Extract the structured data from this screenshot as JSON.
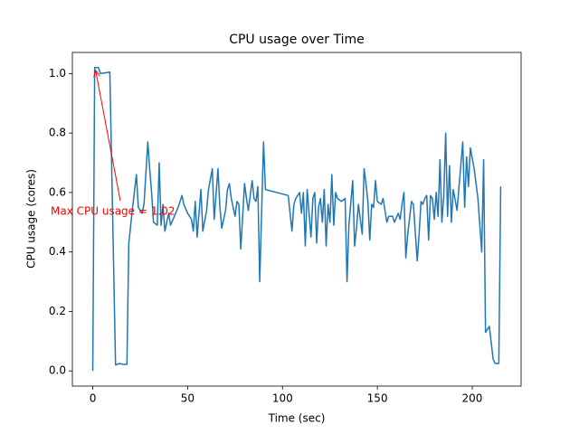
{
  "chart_data": {
    "type": "line",
    "title": "CPU usage over Time",
    "xlabel": "Time (sec)",
    "ylabel": "CPU usage (cores)",
    "annotation": "Max CPU usage = 1.02",
    "annotation_color": "#ff0000",
    "xlim": [
      -10.75,
      225.75
    ],
    "ylim": [
      -0.051,
      1.071
    ],
    "xticks": [
      0,
      50,
      100,
      150,
      200
    ],
    "yticks": [
      {
        "value": 0,
        "label": "0.0"
      },
      {
        "value": 0.2,
        "label": "0.2"
      },
      {
        "value": 0.4,
        "label": "0.4"
      },
      {
        "value": 0.6,
        "label": "0.6"
      },
      {
        "value": 0.8,
        "label": "0.8"
      },
      {
        "value": 1,
        "label": "1.0"
      }
    ],
    "series": [
      {
        "color": "#1f77b4",
        "x": [
          0,
          1,
          3,
          4,
          9,
          11,
          12,
          14,
          16,
          18,
          19,
          21,
          23,
          24,
          26,
          27,
          29,
          30,
          31,
          32,
          34,
          35,
          36,
          37,
          38,
          40,
          41,
          43,
          45,
          47,
          48,
          50,
          52,
          53,
          54,
          55,
          57,
          58,
          60,
          61,
          63,
          64,
          66,
          67,
          68,
          70,
          71,
          72,
          73,
          75,
          76,
          77,
          78,
          80,
          81,
          82,
          84,
          85,
          86,
          87,
          88,
          90,
          91,
          103,
          105,
          106,
          107,
          109,
          110,
          111,
          112,
          113,
          115,
          116,
          117,
          118,
          119,
          120,
          121,
          122,
          123,
          124,
          125,
          126,
          127,
          128,
          129,
          131,
          133,
          134,
          135,
          137,
          138,
          139,
          140,
          142,
          143,
          144,
          145,
          146,
          147,
          148,
          149,
          150,
          152,
          153,
          155,
          156,
          158,
          159,
          161,
          162,
          163,
          164,
          165,
          166,
          168,
          169,
          171,
          172,
          173,
          174,
          175,
          176,
          177,
          178,
          179,
          180,
          181,
          182,
          183,
          184,
          185,
          186,
          187,
          188,
          189,
          190,
          192,
          195,
          196,
          197,
          198,
          199,
          201,
          203,
          205,
          206,
          207,
          209,
          211,
          212,
          214,
          215
        ],
        "values": [
          0.0,
          1.02,
          1.02,
          1.0,
          1.005,
          0.35,
          0.02,
          0.025,
          0.022,
          0.022,
          0.43,
          0.55,
          0.66,
          0.55,
          0.53,
          0.56,
          0.77,
          0.68,
          0.6,
          0.5,
          0.49,
          0.7,
          0.49,
          0.56,
          0.47,
          0.53,
          0.49,
          0.52,
          0.55,
          0.59,
          0.56,
          0.53,
          0.51,
          0.47,
          0.57,
          0.45,
          0.61,
          0.47,
          0.54,
          0.61,
          0.68,
          0.51,
          0.68,
          0.55,
          0.48,
          0.54,
          0.61,
          0.63,
          0.58,
          0.52,
          0.57,
          0.56,
          0.41,
          0.63,
          0.58,
          0.54,
          0.64,
          0.58,
          0.57,
          0.62,
          0.3,
          0.77,
          0.61,
          0.59,
          0.47,
          0.56,
          0.58,
          0.6,
          0.53,
          0.6,
          0.42,
          0.61,
          0.45,
          0.58,
          0.6,
          0.43,
          0.55,
          0.58,
          0.5,
          0.61,
          0.42,
          0.56,
          0.5,
          0.66,
          0.49,
          0.6,
          0.58,
          0.57,
          0.58,
          0.3,
          0.49,
          0.64,
          0.42,
          0.48,
          0.56,
          0.46,
          0.68,
          0.63,
          0.57,
          0.44,
          0.56,
          0.55,
          0.64,
          0.57,
          0.56,
          0.58,
          0.5,
          0.52,
          0.52,
          0.5,
          0.53,
          0.51,
          0.56,
          0.6,
          0.38,
          0.46,
          0.57,
          0.56,
          0.37,
          0.46,
          0.57,
          0.56,
          0.58,
          0.59,
          0.44,
          0.59,
          0.58,
          0.51,
          0.6,
          0.52,
          0.71,
          0.5,
          0.59,
          0.8,
          0.52,
          0.69,
          0.5,
          0.61,
          0.54,
          0.77,
          0.55,
          0.72,
          0.62,
          0.75,
          0.68,
          0.58,
          0.4,
          0.71,
          0.13,
          0.15,
          0.04,
          0.025,
          0.025,
          0.62
        ]
      }
    ]
  }
}
